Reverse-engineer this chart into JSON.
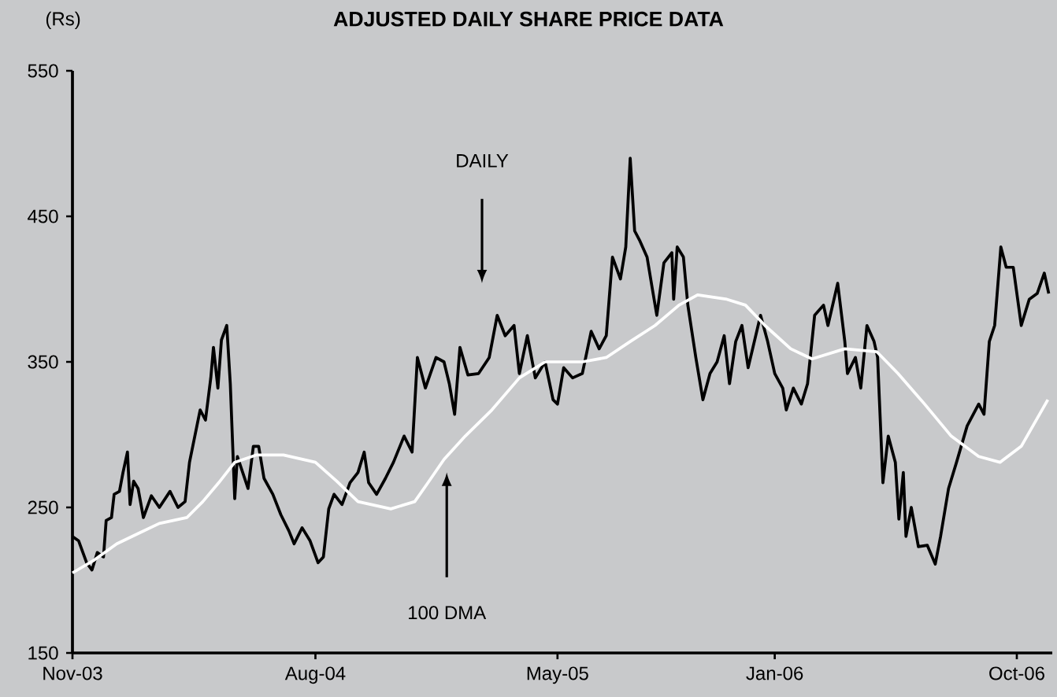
{
  "chart_data": {
    "type": "line",
    "title": "ADJUSTED DAILY SHARE PRICE DATA",
    "ylabel": "(Rs)",
    "xlim": [
      "2003-11-01",
      "2006-11-10"
    ],
    "xticks": [
      {
        "value": "2003-11",
        "label": "Nov-03"
      },
      {
        "value": "2004-08",
        "label": "Aug-04"
      },
      {
        "value": "2005-05",
        "label": "May-05"
      },
      {
        "value": "2006-01",
        "label": "Jan-06"
      },
      {
        "value": "2006-10",
        "label": "Oct-06"
      }
    ],
    "ylim": [
      150,
      550
    ],
    "yticks": [
      150,
      250,
      350,
      450,
      550
    ],
    "marker": "none",
    "line_style": "solid",
    "annotations": [
      "DAILY",
      "100 DMA"
    ],
    "series": [
      {
        "color": "#000000",
        "x": [
          "2003-11-01",
          "2003-11-08",
          "2003-11-17",
          "2003-11-23",
          "2003-11-29",
          "2003-12-06",
          "2003-12-09",
          "2003-12-15",
          "2003-12-18",
          "2003-12-24",
          "2003-12-28",
          "2004-01-02",
          "2004-01-05",
          "2004-01-09",
          "2004-01-14",
          "2004-01-20",
          "2004-01-29",
          "2004-02-07",
          "2004-02-19",
          "2004-02-28",
          "2004-03-07",
          "2004-03-12",
          "2004-03-18",
          "2004-03-24",
          "2004-03-30",
          "2004-04-05",
          "2004-04-08",
          "2004-04-13",
          "2004-04-17",
          "2004-04-23",
          "2004-04-27",
          "2004-05-02",
          "2004-05-05",
          "2004-05-11",
          "2004-05-17",
          "2004-05-23",
          "2004-05-29",
          "2004-06-04",
          "2004-06-14",
          "2004-06-23",
          "2004-07-02",
          "2004-07-08",
          "2004-07-17",
          "2004-07-26",
          "2004-08-04",
          "2004-08-10",
          "2004-08-16",
          "2004-08-22",
          "2004-08-31",
          "2004-09-09",
          "2004-09-18",
          "2004-09-25",
          "2004-09-30",
          "2004-10-09",
          "2004-10-19",
          "2004-10-28",
          "2004-11-09",
          "2004-11-18",
          "2004-11-24",
          "2004-12-03",
          "2004-12-15",
          "2004-12-24",
          "2004-12-30",
          "2005-01-05",
          "2005-01-11",
          "2005-01-20",
          "2005-02-01",
          "2005-02-13",
          "2005-02-22",
          "2005-03-03",
          "2005-03-13",
          "2005-03-19",
          "2005-03-28",
          "2005-04-06",
          "2005-04-17",
          "2005-04-26",
          "2005-05-01",
          "2005-05-08",
          "2005-05-18",
          "2005-05-29",
          "2005-06-08",
          "2005-06-17",
          "2005-06-25",
          "2005-07-02",
          "2005-07-11",
          "2005-07-17",
          "2005-07-22",
          "2005-07-27",
          "2005-08-02",
          "2005-08-10",
          "2005-08-16",
          "2005-08-21",
          "2005-08-29",
          "2005-09-07",
          "2005-09-09",
          "2005-09-13",
          "2005-09-20",
          "2005-09-25",
          "2005-10-04",
          "2005-10-12",
          "2005-10-20",
          "2005-10-28",
          "2005-11-05",
          "2005-11-11",
          "2005-11-18",
          "2005-11-25",
          "2005-12-02",
          "2005-12-09",
          "2005-12-16",
          "2005-12-24",
          "2006-01-01",
          "2006-01-10",
          "2006-01-14",
          "2006-01-22",
          "2006-01-31",
          "2006-02-07",
          "2006-02-15",
          "2006-02-25",
          "2006-03-02",
          "2006-03-13",
          "2006-03-21",
          "2006-03-24",
          "2006-04-02",
          "2006-04-08",
          "2006-04-15",
          "2006-04-23",
          "2006-04-27",
          "2006-05-03",
          "2006-05-09",
          "2006-05-17",
          "2006-05-21",
          "2006-05-26",
          "2006-05-29",
          "2006-06-04",
          "2006-06-12",
          "2006-06-22",
          "2006-07-01",
          "2006-07-07",
          "2006-07-16",
          "2006-07-25",
          "2006-08-06",
          "2006-08-19",
          "2006-08-25",
          "2006-08-31",
          "2006-09-06",
          "2006-09-13",
          "2006-09-19",
          "2006-09-27",
          "2006-10-06",
          "2006-10-15",
          "2006-10-24",
          "2006-11-01",
          "2006-11-06"
        ],
        "values": [
          230,
          227,
          212,
          207,
          219,
          216,
          241,
          243,
          259,
          261,
          274,
          288,
          252,
          268,
          263,
          243,
          258,
          250,
          261,
          250,
          254,
          281,
          299,
          317,
          310,
          339,
          360,
          332,
          365,
          375,
          335,
          256,
          285,
          274,
          263,
          292,
          292,
          270,
          259,
          245,
          234,
          225,
          236,
          227,
          212,
          216,
          249,
          259,
          252,
          267,
          274,
          288,
          267,
          259,
          270,
          281,
          299,
          288,
          353,
          332,
          353,
          350,
          335,
          314,
          360,
          341,
          342,
          353,
          382,
          368,
          375,
          342,
          368,
          339,
          350,
          324,
          321,
          346,
          339,
          342,
          371,
          359,
          368,
          422,
          407,
          429,
          490,
          440,
          433,
          422,
          400,
          382,
          418,
          425,
          393,
          429,
          422,
          389,
          353,
          324,
          342,
          350,
          368,
          335,
          364,
          375,
          346,
          364,
          382,
          364,
          342,
          332,
          317,
          332,
          321,
          335,
          382,
          389,
          375,
          404,
          364,
          342,
          353,
          332,
          375,
          364,
          353,
          267,
          299,
          281,
          242,
          274,
          230,
          250,
          223,
          224,
          211,
          230,
          263,
          281,
          306,
          321,
          314,
          364,
          375,
          429,
          415,
          415,
          375,
          393,
          397,
          411,
          397
        ]
      },
      {
        "color": "#ffffff",
        "x": [
          "2003-11-01",
          "2003-11-26",
          "2003-12-21",
          "2004-01-14",
          "2004-02-07",
          "2004-03-09",
          "2004-03-27",
          "2004-04-14",
          "2004-05-02",
          "2004-05-26",
          "2004-06-26",
          "2004-08-01",
          "2004-08-25",
          "2004-09-18",
          "2004-10-25",
          "2004-11-21",
          "2004-12-06",
          "2004-12-24",
          "2005-01-17",
          "2005-02-16",
          "2005-03-19",
          "2005-04-17",
          "2005-05-01",
          "2005-05-29",
          "2005-06-25",
          "2005-07-22",
          "2005-08-19",
          "2005-09-15",
          "2005-10-06",
          "2005-11-08",
          "2005-11-29",
          "2005-12-21",
          "2006-01-19",
          "2006-02-12",
          "2006-03-21",
          "2006-04-26",
          "2006-05-20",
          "2006-06-19",
          "2006-07-19",
          "2006-08-19",
          "2006-09-12",
          "2006-10-06",
          "2006-11-05"
        ],
        "values": [
          205,
          214,
          225,
          232,
          239,
          243,
          254,
          267,
          281,
          286,
          286,
          281,
          268,
          254,
          249,
          254,
          267,
          283,
          299,
          317,
          339,
          350,
          350,
          350,
          353,
          364,
          375,
          389,
          396,
          393,
          389,
          375,
          359,
          352,
          359,
          357,
          342,
          321,
          299,
          285,
          281,
          292,
          324
        ]
      }
    ]
  }
}
